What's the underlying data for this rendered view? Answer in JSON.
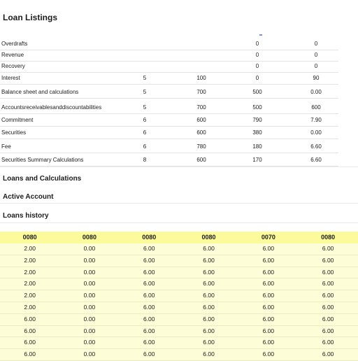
{
  "page": {
    "title": "Loan Listings"
  },
  "summary_rows": [
    {
      "label": "Overdrafts",
      "c1": "",
      "c2": "",
      "c3": "0",
      "c4": "0"
    },
    {
      "label": "Revenue",
      "c1": "",
      "c2": "",
      "c3": "0",
      "c4": "0"
    },
    {
      "label": "Recovery",
      "c1": "",
      "c2": "",
      "c3": "0",
      "c4": "0"
    },
    {
      "label": "Interest",
      "c1": "5",
      "c2": "100",
      "c3": "0",
      "c4": "90"
    },
    {
      "label": "Balance sheet and calculations",
      "c1": "5",
      "c2": "700",
      "c3": "500",
      "c4": "0.00"
    },
    {
      "label": "Accountsreceivablesanddiscountabilities",
      "c1": "5",
      "c2": "700",
      "c3": "500",
      "c4": "600"
    },
    {
      "label": "Commitment",
      "c1": "6",
      "c2": "600",
      "c3": "790",
      "c4": "7.90"
    },
    {
      "label": "Securities",
      "c1": "6",
      "c2": "600",
      "c3": "380",
      "c4": "0.00"
    },
    {
      "label": "Fee",
      "c1": "6",
      "c2": "780",
      "c3": "180",
      "c4": "6.60"
    },
    {
      "label": "Securities Summary Calculations",
      "c1": "8",
      "c2": "600",
      "c3": "170",
      "c4": "6.60"
    }
  ],
  "sections": {
    "calculations": "Loans and Calculations",
    "account": "Active Account",
    "history": "Loans history"
  },
  "grid": {
    "headers": [
      "0080",
      "0080",
      "0080",
      "0080",
      "0070",
      "0080"
    ],
    "rows": [
      [
        "2.00",
        "0.00",
        "6.00",
        "6.00",
        "6.00",
        "6.00"
      ],
      [
        "2.00",
        "0.00",
        "6.00",
        "6.00",
        "6.00",
        "6.00"
      ],
      [
        "2.00",
        "0.00",
        "6.00",
        "6.00",
        "6.00",
        "6.00"
      ],
      [
        "2.00",
        "0.00",
        "6.00",
        "6.00",
        "6.00",
        "6.00"
      ],
      [
        "2.00",
        "0.00",
        "6.00",
        "6.00",
        "6.00",
        "6.00"
      ],
      [
        "2.00",
        "0.00",
        "6.00",
        "6.00",
        "6.00",
        "6.00"
      ],
      [
        "6.00",
        "0.00",
        "6.00",
        "6.00",
        "6.00",
        "6.00"
      ],
      [
        "6.00",
        "0.00",
        "6.00",
        "6.00",
        "6.00",
        "6.00"
      ],
      [
        "6.00",
        "0.00",
        "6.00",
        "6.00",
        "6.00",
        "6.00"
      ],
      [
        "6.00",
        "0.00",
        "6.00",
        "6.00",
        "6.00",
        "6.00"
      ]
    ]
  },
  "colors": {
    "grid_header": "#fbfb9c",
    "grid_body": "#fdfdd8",
    "divider": "#e4e4e4"
  }
}
